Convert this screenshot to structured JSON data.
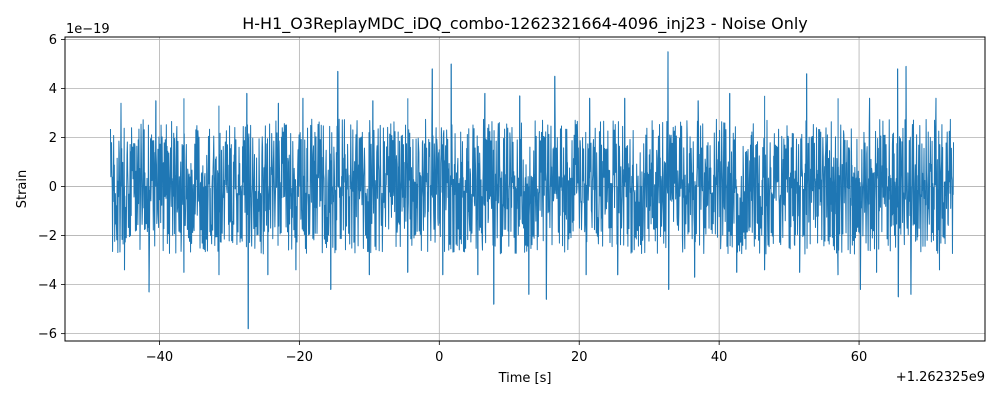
{
  "chart_data": {
    "type": "line",
    "title": "H-H1_O3ReplayMDC_iDQ_combo-1262321664-4096_inj23 - Noise Only",
    "xlabel": "Time [s]",
    "ylabel": "Strain",
    "y_scale_label": "1e−19",
    "x_offset_label": "+1.262325e9",
    "xlim": [
      -53.5,
      78
    ],
    "ylim": [
      -6.3,
      6.1
    ],
    "x_ticks": [
      -40,
      -20,
      0,
      20,
      40,
      60
    ],
    "x_tick_labels": [
      "−40",
      "−20",
      "0",
      "20",
      "40",
      "60"
    ],
    "y_ticks": [
      -6,
      -4,
      -2,
      0,
      2,
      4,
      6
    ],
    "y_tick_labels": [
      "−6",
      "−4",
      "−2",
      "0",
      "2",
      "4",
      "6"
    ],
    "grid": true,
    "line_color": "#1f77b4",
    "series": [
      {
        "x_range": [
          -47,
          73.5
        ],
        "typical_envelope": [
          -2.5,
          2.5
        ],
        "peaks": [
          {
            "x": -45.5,
            "y": 3.4
          },
          {
            "x": -40.5,
            "y": 3.5
          },
          {
            "x": -36.5,
            "y": 3.6
          },
          {
            "x": -31.5,
            "y": 3.3
          },
          {
            "x": -27.5,
            "y": 3.8
          },
          {
            "x": -23,
            "y": 3.4
          },
          {
            "x": -19.5,
            "y": 3.6
          },
          {
            "x": -14.5,
            "y": 4.7
          },
          {
            "x": -9.5,
            "y": 3.5
          },
          {
            "x": -4.5,
            "y": 3.6
          },
          {
            "x": -1,
            "y": 4.8
          },
          {
            "x": 1.7,
            "y": 5.0
          },
          {
            "x": 6.5,
            "y": 3.8
          },
          {
            "x": 11.5,
            "y": 3.7
          },
          {
            "x": 16.5,
            "y": 4.5
          },
          {
            "x": 21.5,
            "y": 3.6
          },
          {
            "x": 26.5,
            "y": 3.6
          },
          {
            "x": 32.7,
            "y": 5.5
          },
          {
            "x": 37,
            "y": 3.5
          },
          {
            "x": 41.5,
            "y": 3.8
          },
          {
            "x": 46.5,
            "y": 3.7
          },
          {
            "x": 52.5,
            "y": 4.6
          },
          {
            "x": 57,
            "y": 3.6
          },
          {
            "x": 61.5,
            "y": 3.6
          },
          {
            "x": 65.5,
            "y": 4.8
          },
          {
            "x": 66.7,
            "y": 4.9
          },
          {
            "x": 71,
            "y": 3.6
          }
        ],
        "troughs": [
          {
            "x": -45,
            "y": -3.4
          },
          {
            "x": -41.5,
            "y": -4.3
          },
          {
            "x": -36.5,
            "y": -3.5
          },
          {
            "x": -31.5,
            "y": -3.6
          },
          {
            "x": -27.3,
            "y": -5.8
          },
          {
            "x": -24.5,
            "y": -3.6
          },
          {
            "x": -20.5,
            "y": -3.4
          },
          {
            "x": -15.5,
            "y": -4.2
          },
          {
            "x": -10,
            "y": -3.6
          },
          {
            "x": -4.5,
            "y": -3.5
          },
          {
            "x": 0.5,
            "y": -3.6
          },
          {
            "x": 5.5,
            "y": -3.6
          },
          {
            "x": 7.8,
            "y": -4.8
          },
          {
            "x": 12.8,
            "y": -4.4
          },
          {
            "x": 15.3,
            "y": -4.6
          },
          {
            "x": 21,
            "y": -3.6
          },
          {
            "x": 25.5,
            "y": -3.6
          },
          {
            "x": 32.8,
            "y": -4.2
          },
          {
            "x": 36.5,
            "y": -3.7
          },
          {
            "x": 42.5,
            "y": -3.5
          },
          {
            "x": 46.5,
            "y": -3.4
          },
          {
            "x": 51.5,
            "y": -3.5
          },
          {
            "x": 57,
            "y": -3.6
          },
          {
            "x": 60.2,
            "y": -4.2
          },
          {
            "x": 62.5,
            "y": -3.5
          },
          {
            "x": 65.6,
            "y": -4.5
          },
          {
            "x": 67.4,
            "y": -4.4
          },
          {
            "x": 71.5,
            "y": -3.4
          }
        ]
      }
    ]
  }
}
